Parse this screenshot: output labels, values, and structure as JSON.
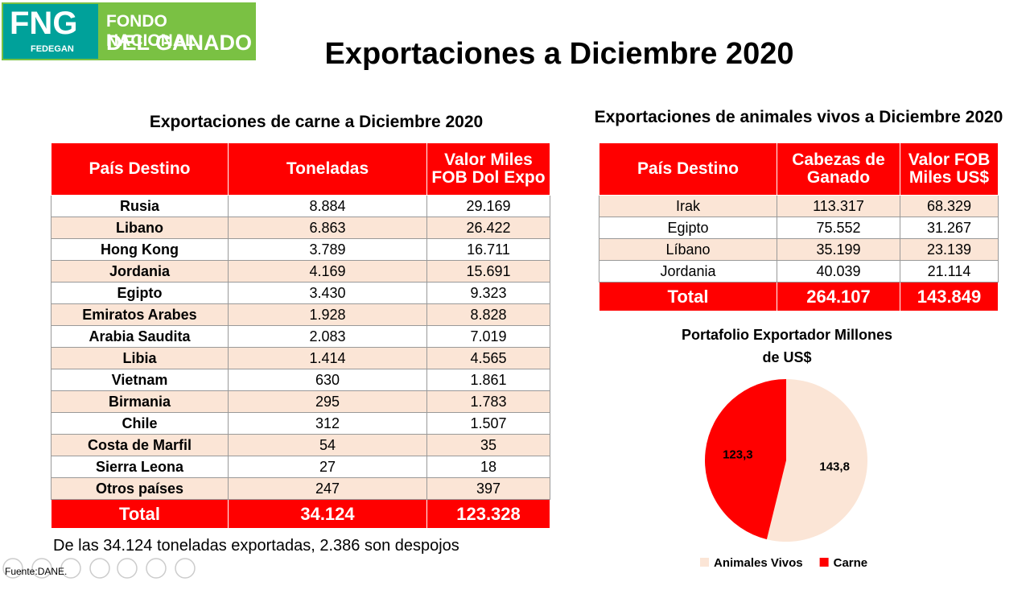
{
  "logo": {
    "mark": "FNG",
    "sub": "FEDEGAN",
    "line1": "FONDO NACIONAL",
    "line2": "DEL GANADO"
  },
  "title": "Exportaciones a Diciembre 2020",
  "carne": {
    "title": "Exportaciones de carne a Diciembre 2020",
    "header": [
      "País Destino",
      "Toneladas",
      "Valor Miles FOB Dol Expo"
    ],
    "rows": [
      [
        "Rusia",
        "8.884",
        "29.169"
      ],
      [
        "Libano",
        "6.863",
        "26.422"
      ],
      [
        "Hong Kong",
        "3.789",
        "16.711"
      ],
      [
        "Jordania",
        "4.169",
        "15.691"
      ],
      [
        "Egipto",
        "3.430",
        "9.323"
      ],
      [
        "Emiratos Arabes",
        "1.928",
        "8.828"
      ],
      [
        "Arabia Saudita",
        "2.083",
        "7.019"
      ],
      [
        "Libia",
        "1.414",
        "4.565"
      ],
      [
        "Vietnam",
        "630",
        "1.861"
      ],
      [
        "Birmania",
        "295",
        "1.783"
      ],
      [
        "Chile",
        "312",
        "1.507"
      ],
      [
        "Costa de Marfil",
        "54",
        "35"
      ],
      [
        "Sierra Leona",
        "27",
        "18"
      ],
      [
        "Otros países",
        "247",
        "397"
      ]
    ],
    "total": [
      "Total",
      "34.124",
      "123.328"
    ],
    "note": "De las 34.124 toneladas exportadas, 2.386 son despojos"
  },
  "vivos": {
    "title": "Exportaciones de animales vivos a Diciembre 2020",
    "header": [
      "País Destino",
      "Cabezas de Ganado",
      "Valor FOB Miles US$"
    ],
    "rows": [
      [
        "Irak",
        "113.317",
        "68.329"
      ],
      [
        "Egipto",
        "75.552",
        "31.267"
      ],
      [
        "Líbano",
        "35.199",
        "23.139"
      ],
      [
        "Jordania",
        "40.039",
        "21.114"
      ]
    ],
    "total": [
      "Total",
      "264.107",
      "143.849"
    ]
  },
  "source": "Fuente:DANE.",
  "chart_data": {
    "type": "pie",
    "title": "Portafolio Exportador Millones de US$",
    "categories": [
      "Animales Vivos",
      "Carne"
    ],
    "values": [
      143.8,
      123.3
    ],
    "value_labels": [
      "143,8",
      "123,3"
    ],
    "colors": [
      "#fbe5d6",
      "#ff0000"
    ],
    "legend": "bottom"
  }
}
